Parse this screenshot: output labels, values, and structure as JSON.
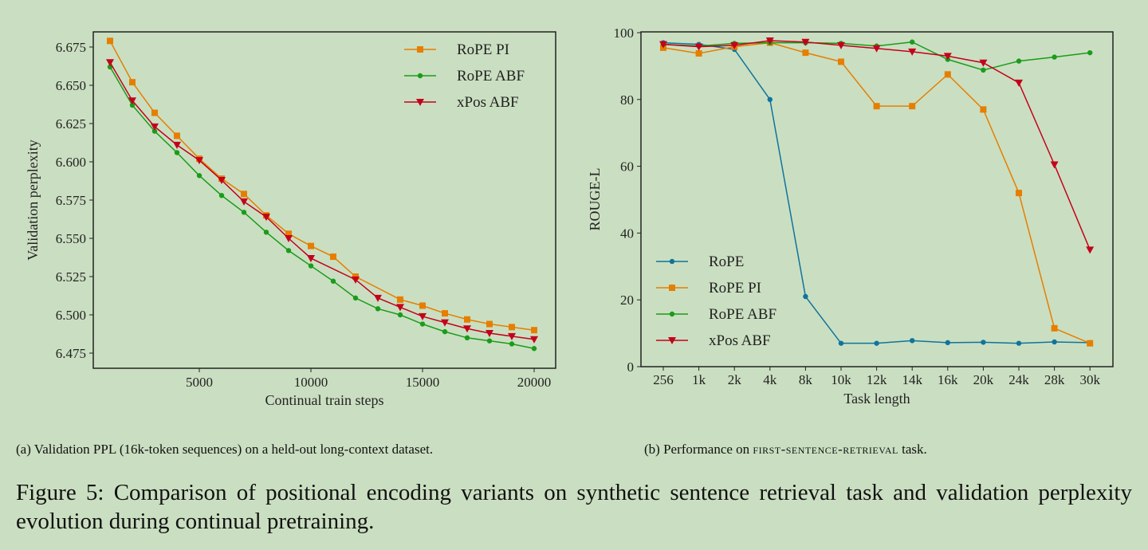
{
  "colors": {
    "background": "#cadfc1",
    "RoPE": "#10739e",
    "RoPE PI": "#e67e00",
    "RoPE ABF": "#1a9c1a",
    "xPos ABF": "#c4001c"
  },
  "chart_data": [
    {
      "type": "line",
      "title": "",
      "xlabel": "Continual train steps",
      "ylabel": "Validation perplexity",
      "xlim": [
        0,
        20500
      ],
      "ylim": [
        6.465,
        6.685
      ],
      "xticks": [
        5000,
        10000,
        15000,
        20000
      ],
      "xtick_labels": [
        "5000",
        "10000",
        "15000",
        "20000"
      ],
      "yticks": [
        6.475,
        6.5,
        6.525,
        6.55,
        6.575,
        6.6,
        6.625,
        6.65,
        6.675
      ],
      "ytick_labels": [
        "6.475",
        "6.500",
        "6.525",
        "6.550",
        "6.575",
        "6.600",
        "6.625",
        "6.650",
        "6.675"
      ],
      "legend_position": "top-right",
      "grid": false,
      "series": [
        {
          "name": "RoPE PI",
          "marker": "square",
          "x": [
            1000,
            2000,
            3000,
            4000,
            5000,
            6000,
            7000,
            8000,
            9000,
            10000,
            11000,
            12000,
            14000,
            15000,
            16000,
            17000,
            18000,
            19000,
            20000
          ],
          "y": [
            6.679,
            6.652,
            6.632,
            6.617,
            6.602,
            6.589,
            6.579,
            6.565,
            6.553,
            6.545,
            6.538,
            6.525,
            6.51,
            6.506,
            6.501,
            6.497,
            6.494,
            6.492,
            6.49
          ]
        },
        {
          "name": "RoPE ABF",
          "marker": "dot",
          "x": [
            1000,
            2000,
            3000,
            4000,
            5000,
            6000,
            7000,
            8000,
            9000,
            10000,
            11000,
            12000,
            13000,
            14000,
            15000,
            16000,
            17000,
            18000,
            19000,
            20000
          ],
          "y": [
            6.662,
            6.637,
            6.62,
            6.606,
            6.591,
            6.578,
            6.567,
            6.554,
            6.542,
            6.532,
            6.522,
            6.511,
            6.504,
            6.5,
            6.494,
            6.489,
            6.485,
            6.483,
            6.481,
            6.478
          ]
        },
        {
          "name": "xPos ABF",
          "marker": "triangle-down",
          "x": [
            1000,
            2000,
            3000,
            4000,
            5000,
            6000,
            7000,
            8000,
            9000,
            10000,
            12000,
            13000,
            14000,
            15000,
            16000,
            17000,
            18000,
            19000,
            20000
          ],
          "y": [
            6.665,
            6.64,
            6.623,
            6.611,
            6.601,
            6.588,
            6.574,
            6.564,
            6.55,
            6.537,
            6.523,
            6.511,
            6.505,
            6.499,
            6.495,
            6.491,
            6.488,
            6.486,
            6.484
          ]
        }
      ]
    },
    {
      "type": "line",
      "title": "",
      "xlabel": "Task length",
      "ylabel": "ROUGE-L",
      "categories": [
        "256",
        "1k",
        "2k",
        "4k",
        "8k",
        "10k",
        "12k",
        "14k",
        "16k",
        "20k",
        "24k",
        "28k",
        "30k"
      ],
      "ylim": [
        0,
        100
      ],
      "yticks": [
        0,
        20,
        40,
        60,
        80,
        100
      ],
      "ytick_labels": [
        "0",
        "20",
        "40",
        "60",
        "80",
        "100"
      ],
      "legend_position": "lower-left",
      "grid": false,
      "series": [
        {
          "name": "RoPE",
          "marker": "dot",
          "values": [
            97,
            96.5,
            95,
            80,
            21,
            7,
            7,
            7.8,
            7.2,
            7.3,
            7,
            7.4,
            7.2
          ]
        },
        {
          "name": "RoPE PI",
          "marker": "square",
          "values": [
            95.5,
            93.8,
            95.8,
            97,
            94,
            91.3,
            78,
            78,
            87.5,
            77,
            52,
            11.5,
            7
          ]
        },
        {
          "name": "RoPE ABF",
          "marker": "dot",
          "values": [
            96.5,
            96,
            96.8,
            97,
            97,
            96.8,
            96,
            97.2,
            92,
            88.8,
            91.5,
            92.7,
            94
          ]
        },
        {
          "name": "xPos ABF",
          "marker": "triangle-down",
          "values": [
            96.5,
            95.8,
            96.2,
            97.6,
            97.2,
            96.2,
            95.3,
            94.3,
            93,
            91,
            85,
            60.5,
            35
          ]
        }
      ]
    }
  ],
  "captions": {
    "a": "(a) Validation PPL (16k-token sequences) on a held-out long-context dataset.",
    "b_prefix": "(b) Performance on ",
    "b_task": "first-sentence-retrieval",
    "b_suffix": " task.",
    "figure": "Figure 5:  Comparison of positional encoding variants on synthetic sentence retrieval task and validation perplexity evolution during continual pretraining."
  }
}
